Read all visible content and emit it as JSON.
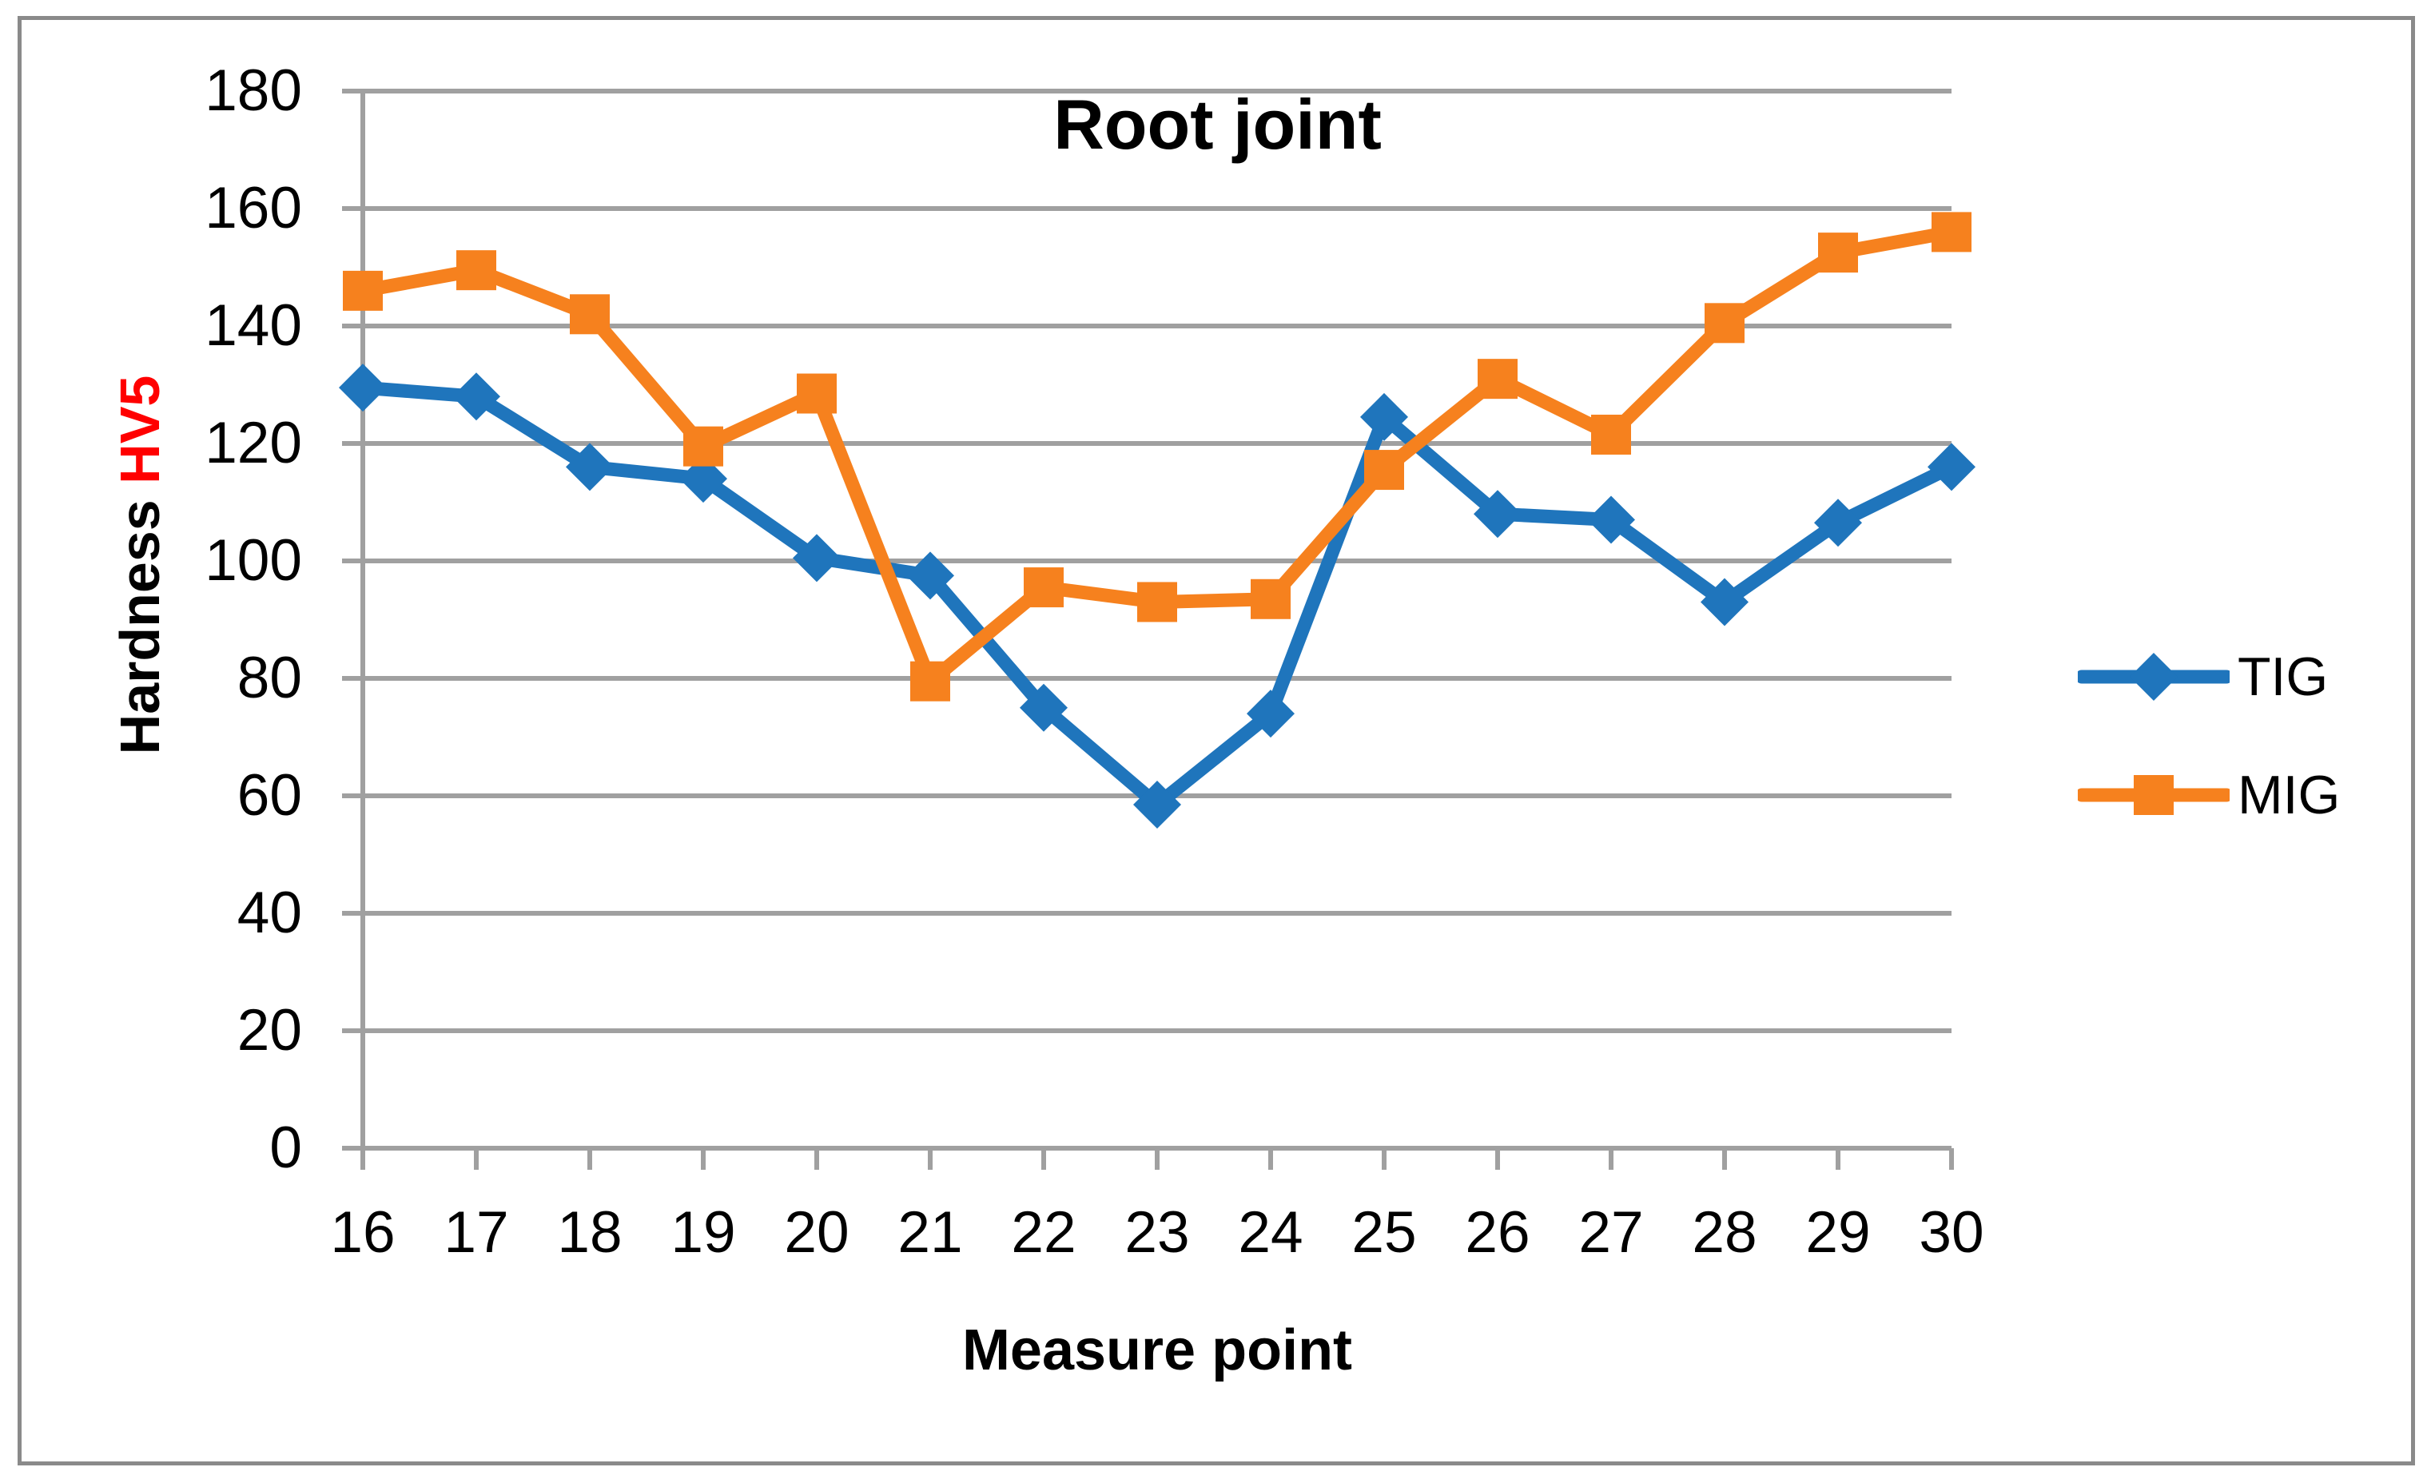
{
  "chart_data": {
    "type": "line",
    "title": "Root joint",
    "x_axis_title": "Measure point",
    "y_axis_title": {
      "black_part": "Hardness ",
      "red_part": "HV5"
    },
    "categories": [
      16,
      17,
      18,
      19,
      20,
      21,
      22,
      23,
      24,
      25,
      26,
      27,
      28,
      29,
      30
    ],
    "series": [
      {
        "name": "TIG",
        "color": "#1F75BC",
        "marker": "diamond",
        "values": [
          129.5,
          128,
          116,
          114,
          100.5,
          97.5,
          75,
          58.5,
          74,
          124.5,
          108,
          107,
          93,
          106.5,
          116
        ]
      },
      {
        "name": "MIG",
        "color": "#F6811E",
        "marker": "square",
        "values": [
          146,
          149.5,
          142,
          119.5,
          128.5,
          79.5,
          95.5,
          93,
          93.5,
          115.5,
          131,
          121.5,
          140.5,
          152.5,
          156
        ]
      }
    ],
    "ylim": [
      0,
      180
    ],
    "y_tick_step": 20,
    "grid": true,
    "legend_position": "right"
  },
  "colors": {
    "gridline": "#A0A0A0",
    "axis": "#A0A0A0",
    "border": "#8A8A8A",
    "text": "#000000",
    "hv5_red": "#FF0000",
    "background": "#FFFFFF"
  }
}
